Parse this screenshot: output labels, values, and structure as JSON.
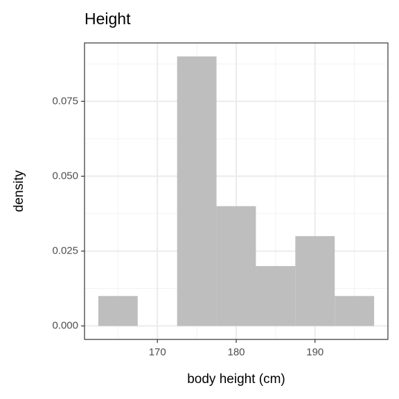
{
  "chart_data": {
    "type": "histogram",
    "title": "Height",
    "x_label": "body height (cm)",
    "y_label": "density",
    "bins": [
      162.5,
      167.5,
      172.5,
      177.5,
      182.5,
      187.5,
      192.5,
      197.5
    ],
    "values": [
      0.01,
      0,
      0.09,
      0.04,
      0.02,
      0.03,
      0.01
    ],
    "color": "#bebebe",
    "xlim": [
      160.75,
      199.25
    ],
    "xticks": [
      170,
      180,
      190
    ],
    "ylim": [
      -0.0045,
      0.0945
    ],
    "yticks": [
      {
        "value": 0,
        "label": "0.000"
      },
      {
        "value": 0.025,
        "label": "0.025"
      },
      {
        "value": 0.05,
        "label": "0.050"
      },
      {
        "value": 0.075,
        "label": "0.075"
      }
    ],
    "grid": true
  }
}
